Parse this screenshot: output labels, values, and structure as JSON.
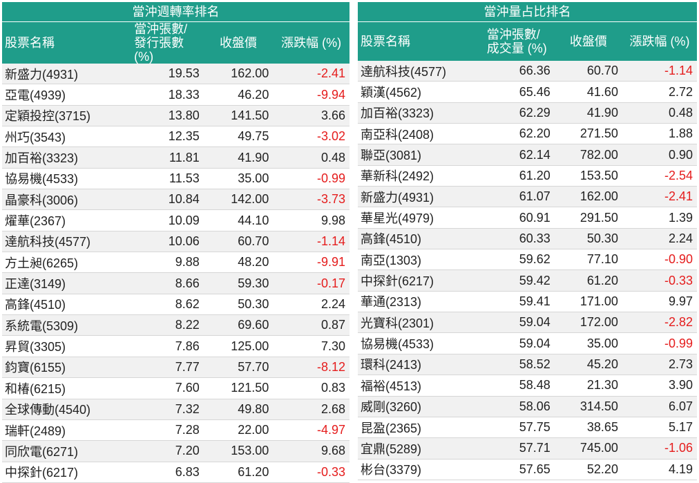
{
  "left": {
    "title": "當沖週轉率排名",
    "headers": [
      "股票名稱",
      "當沖張數/\n發行張數 (%)",
      "收盤價",
      "漲跌幅 (%)"
    ],
    "rows": [
      [
        "新盛力(4931)",
        "19.53",
        "162.00",
        "-2.41"
      ],
      [
        "亞電(4939)",
        "18.33",
        "46.20",
        "-9.94"
      ],
      [
        "定穎投控(3715)",
        "13.80",
        "141.50",
        "3.66"
      ],
      [
        "州巧(3543)",
        "12.35",
        "49.75",
        "-3.02"
      ],
      [
        "加百裕(3323)",
        "11.81",
        "41.90",
        "0.48"
      ],
      [
        "協易機(4533)",
        "11.53",
        "35.00",
        "-0.99"
      ],
      [
        "晶豪科(3006)",
        "10.84",
        "142.00",
        "-3.73"
      ],
      [
        "燿華(2367)",
        "10.09",
        "44.10",
        "9.98"
      ],
      [
        "達航科技(4577)",
        "10.06",
        "60.70",
        "-1.14"
      ],
      [
        "方土昶(6265)",
        "9.88",
        "48.20",
        "-9.91"
      ],
      [
        "正達(3149)",
        "8.66",
        "59.30",
        "-0.17"
      ],
      [
        "高鋒(4510)",
        "8.62",
        "50.30",
        "2.24"
      ],
      [
        "系統電(5309)",
        "8.22",
        "69.60",
        "0.87"
      ],
      [
        "昇貿(3305)",
        "7.86",
        "125.00",
        "7.30"
      ],
      [
        "鈞寶(6155)",
        "7.77",
        "57.70",
        "-8.12"
      ],
      [
        "和椿(6215)",
        "7.60",
        "121.50",
        "0.83"
      ],
      [
        "全球傳動(4540)",
        "7.32",
        "49.80",
        "2.68"
      ],
      [
        "瑞軒(2489)",
        "7.28",
        "22.00",
        "-4.97"
      ],
      [
        "同欣電(6271)",
        "7.20",
        "153.00",
        "9.68"
      ],
      [
        "中探針(6217)",
        "6.83",
        "61.20",
        "-0.33"
      ]
    ]
  },
  "right": {
    "title": "當沖量占比排名",
    "headers": [
      "股票名稱",
      "當沖張數/\n成交量 (%)",
      "收盤價",
      "漲跌幅 (%)"
    ],
    "rows": [
      [
        "達航科技(4577)",
        "66.36",
        "60.70",
        "-1.14"
      ],
      [
        "穎漢(4562)",
        "65.46",
        "41.60",
        "2.72"
      ],
      [
        "加百裕(3323)",
        "62.29",
        "41.90",
        "0.48"
      ],
      [
        "南亞科(2408)",
        "62.20",
        "271.50",
        "1.88"
      ],
      [
        "聯亞(3081)",
        "62.14",
        "782.00",
        "0.90"
      ],
      [
        "華新科(2492)",
        "61.20",
        "153.50",
        "-2.54"
      ],
      [
        "新盛力(4931)",
        "61.07",
        "162.00",
        "-2.41"
      ],
      [
        "華星光(4979)",
        "60.91",
        "291.50",
        "1.39"
      ],
      [
        "高鋒(4510)",
        "60.33",
        "50.30",
        "2.24"
      ],
      [
        "南亞(1303)",
        "59.62",
        "77.10",
        "-0.90"
      ],
      [
        "中探針(6217)",
        "59.42",
        "61.20",
        "-0.33"
      ],
      [
        "華通(2313)",
        "59.41",
        "171.00",
        "9.97"
      ],
      [
        "光寶科(2301)",
        "59.04",
        "172.00",
        "-2.82"
      ],
      [
        "協易機(4533)",
        "59.04",
        "35.00",
        "-0.99"
      ],
      [
        "環科(2413)",
        "58.52",
        "45.20",
        "2.73"
      ],
      [
        "福裕(4513)",
        "58.48",
        "21.30",
        "3.90"
      ],
      [
        "威剛(3260)",
        "58.06",
        "314.50",
        "6.07"
      ],
      [
        "昆盈(2365)",
        "57.75",
        "38.65",
        "5.17"
      ],
      [
        "宜鼎(5289)",
        "57.71",
        "745.00",
        "-1.06"
      ],
      [
        "彬台(3379)",
        "57.65",
        "52.20",
        "4.19"
      ]
    ]
  },
  "colors": {
    "header": "#1f9d8a",
    "negative": "#e51c1c",
    "stripe": "#f1f1f1"
  }
}
